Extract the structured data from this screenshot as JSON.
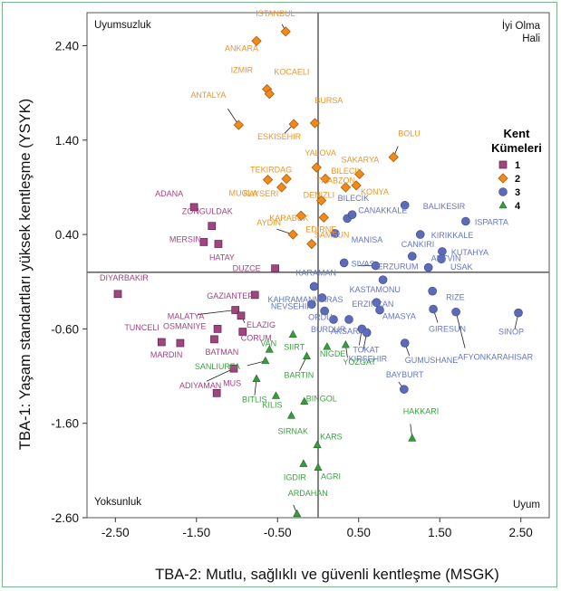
{
  "chart_data": {
    "type": "scatter",
    "xlabel": "TBA-2: Mutlu, sağlıklı ve güvenli kentleşme (MSGK)",
    "ylabel": "TBA-1: Yaşam standartları yüksek kentleşme (YSYK)",
    "xlim": [
      -2.85,
      2.85
    ],
    "ylim": [
      -2.6,
      2.75
    ],
    "x_ticks": [
      "-2.50",
      "-1.50",
      "-0.50",
      "0.50",
      "1.50",
      "2.50"
    ],
    "x_tick_values": [
      -2.5,
      -1.5,
      -0.5,
      0.5,
      1.5,
      2.5
    ],
    "y_ticks": [
      "2.40",
      "1.40",
      "0.40",
      "-0.60",
      "-1.60",
      "-2.60"
    ],
    "y_tick_values": [
      2.4,
      1.4,
      0.4,
      -0.6,
      -1.6,
      -2.6
    ],
    "reference_lines": {
      "x": 0,
      "y": 0
    },
    "grid": false,
    "quadrant_labels": {
      "top_left": "Uyumsuzluk",
      "top_right_line1": "İyi Olma",
      "top_right_line2": "Hali",
      "bottom_left": "Yoksunluk",
      "bottom_right": "Uyum"
    },
    "legend": {
      "title_line1": "Kent",
      "title_line2": "Kümeleri",
      "position": "right",
      "items": [
        "1",
        "2",
        "3",
        "4"
      ]
    },
    "colors": {
      "1": "#a0457f",
      "2": "#f08a1a",
      "3": "#5c6ab8",
      "4": "#3a9a3e"
    },
    "label_colors": {
      "1": "#a0457f",
      "2": "#e8962e",
      "3": "#6676c0",
      "4": "#3ea043"
    },
    "series": [
      {
        "name": "1",
        "points": [
          {
            "label": "ADANA",
            "x": -1.53,
            "y": 0.69
          },
          {
            "label": "ZONGULDAK",
            "x": -1.31,
            "y": 0.49
          },
          {
            "label": "MERSIN",
            "x": -1.41,
            "y": 0.32
          },
          {
            "label": "HATAY",
            "x": -1.23,
            "y": 0.3
          },
          {
            "label": "DUZCE",
            "x": -0.53,
            "y": 0.04
          },
          {
            "label": "DIYARBAKIR",
            "x": -2.47,
            "y": -0.23
          },
          {
            "label": "GAZIANTEP",
            "x": -0.78,
            "y": -0.24
          },
          {
            "label": "MALATYA",
            "x": -1.02,
            "y": -0.4
          },
          {
            "label": "ELAZIG",
            "x": -0.95,
            "y": -0.46
          },
          {
            "label": "OSMANIYE",
            "x": -1.24,
            "y": -0.6
          },
          {
            "label": "CORUM",
            "x": -0.93,
            "y": -0.63
          },
          {
            "label": "BATMAN",
            "x": -1.28,
            "y": -0.71
          },
          {
            "label": "TUNCELI",
            "x": -1.93,
            "y": -0.74
          },
          {
            "label": "MARDIN",
            "x": -1.7,
            "y": -0.75
          },
          {
            "label": "ADIYAMAN",
            "x": -1.04,
            "y": -1.02
          },
          {
            "label": "MUS",
            "x": -1.25,
            "y": -1.28
          }
        ]
      },
      {
        "name": "2",
        "points": [
          {
            "label": "ISTANBUL",
            "x": -0.4,
            "y": 2.55
          },
          {
            "label": "ANKARA",
            "x": -0.76,
            "y": 2.45
          },
          {
            "label": "IZMIR",
            "x": -0.63,
            "y": 1.94
          },
          {
            "label": "KOCAELI",
            "x": -0.6,
            "y": 1.89
          },
          {
            "label": "ANTALYA",
            "x": -0.98,
            "y": 1.56
          },
          {
            "label": "BURSA",
            "x": -0.04,
            "y": 1.58
          },
          {
            "label": "ESKISEHIR",
            "x": -0.3,
            "y": 1.57
          },
          {
            "label": "BOLU",
            "x": 0.93,
            "y": 1.22
          },
          {
            "label": "YALOVA",
            "x": -0.02,
            "y": 1.11
          },
          {
            "label": "SAKARYA",
            "x": 0.51,
            "y": 1.04
          },
          {
            "label": "TEKIRDAG",
            "x": -0.39,
            "y": 0.99
          },
          {
            "label": "MUGLA",
            "x": -0.62,
            "y": 0.98
          },
          {
            "label": "KAYSERI",
            "x": -0.45,
            "y": 0.9
          },
          {
            "label": "TRABZON",
            "x": 0.09,
            "y": 0.99
          },
          {
            "label": "KONYA",
            "x": 0.47,
            "y": 0.92
          },
          {
            "label": "BILECIK",
            "x": 0.34,
            "y": 0.9
          },
          {
            "label": "DENIZLI",
            "x": 0.04,
            "y": 0.76
          },
          {
            "label": "KARABUK",
            "x": -0.21,
            "y": 0.6
          },
          {
            "label": "EDIRNE",
            "x": 0.07,
            "y": 0.58
          },
          {
            "label": "AYDIN",
            "x": -0.31,
            "y": 0.4
          },
          {
            "label": "SAMSUN",
            "x": -0.08,
            "y": 0.3
          }
        ]
      },
      {
        "name": "3",
        "points": [
          {
            "label": "BALIKESIR",
            "x": 1.07,
            "y": 0.71
          },
          {
            "label": "ISPARTA",
            "x": 1.82,
            "y": 0.54
          },
          {
            "label": "CANAKKALE",
            "x": 0.36,
            "y": 0.57
          },
          {
            "label": "BILECIK",
            "x": 0.42,
            "y": 0.61
          },
          {
            "label": "KIRIKKALE",
            "x": 1.26,
            "y": 0.4
          },
          {
            "label": "MANISA",
            "x": 0.21,
            "y": 0.41
          },
          {
            "label": "KUTAHYA",
            "x": 1.53,
            "y": 0.22
          },
          {
            "label": "CANKIRI",
            "x": 1.16,
            "y": 0.17
          },
          {
            "label": "USAK",
            "x": 1.52,
            "y": 0.14
          },
          {
            "label": "SIVAS",
            "x": 0.32,
            "y": 0.1
          },
          {
            "label": "ERZURUM",
            "x": 0.71,
            "y": 0.07
          },
          {
            "label": "ARTVIN",
            "x": 1.36,
            "y": 0.05
          },
          {
            "label": "KASTAMONU",
            "x": 0.8,
            "y": -0.08
          },
          {
            "label": "RIZE",
            "x": 1.41,
            "y": -0.2
          },
          {
            "label": "KARAMAN",
            "x": -0.05,
            "y": -0.15
          },
          {
            "label": "KAHRAMANMARAS",
            "x": 0.05,
            "y": -0.27
          },
          {
            "label": "NEVSEHIR",
            "x": -0.08,
            "y": -0.34
          },
          {
            "label": "ERZINCAN",
            "x": 0.72,
            "y": -0.32
          },
          {
            "label": "ORDU",
            "x": 0.08,
            "y": -0.41
          },
          {
            "label": "AMASYA",
            "x": 0.76,
            "y": -0.4
          },
          {
            "label": "GIRESUN",
            "x": 1.42,
            "y": -0.39
          },
          {
            "label": "AFYONKARAHISAR",
            "x": 1.7,
            "y": -0.42
          },
          {
            "label": "BURDUR",
            "x": 0.19,
            "y": -0.5
          },
          {
            "label": "SINOP",
            "x": 2.47,
            "y": -0.43
          },
          {
            "label": "AKSARAY",
            "x": 0.38,
            "y": -0.5
          },
          {
            "label": "TOKAT",
            "x": 0.54,
            "y": -0.6
          },
          {
            "label": "KIRSEHIR",
            "x": 0.6,
            "y": -0.64
          },
          {
            "label": "GUMUSHANE",
            "x": 1.07,
            "y": -0.75
          },
          {
            "label": "BAYBURT",
            "x": 1.06,
            "y": -1.24
          }
        ]
      },
      {
        "name": "4",
        "points": [
          {
            "label": "VAN",
            "x": -0.6,
            "y": -0.82
          },
          {
            "label": "SIIRT",
            "x": -0.31,
            "y": -0.66
          },
          {
            "label": "SANLIURFA",
            "x": -0.65,
            "y": -0.94
          },
          {
            "label": "NIGDE",
            "x": 0.11,
            "y": -0.79
          },
          {
            "label": "YOZGAT",
            "x": 0.34,
            "y": -0.77
          },
          {
            "label": "BARTIN",
            "x": -0.14,
            "y": -0.89
          },
          {
            "label": "BITLIS",
            "x": -0.76,
            "y": -1.13
          },
          {
            "label": "KILIS",
            "x": -0.52,
            "y": -1.31
          },
          {
            "label": "BINGOL",
            "x": -0.17,
            "y": -1.37
          },
          {
            "label": "SIRNAK",
            "x": -0.33,
            "y": -1.52
          },
          {
            "label": "KARS",
            "x": -0.01,
            "y": -1.83
          },
          {
            "label": "HAKKARI",
            "x": 1.16,
            "y": -1.76
          },
          {
            "label": "IGDIR",
            "x": -0.18,
            "y": -2.03
          },
          {
            "label": "AGRI",
            "x": 0.0,
            "y": -2.07
          },
          {
            "label": "ARDAHAN",
            "x": -0.26,
            "y": -2.56
          }
        ]
      }
    ]
  }
}
